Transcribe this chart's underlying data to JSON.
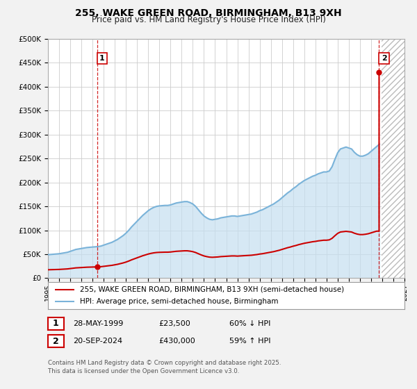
{
  "title": "255, WAKE GREEN ROAD, BIRMINGHAM, B13 9XH",
  "subtitle": "Price paid vs. HM Land Registry's House Price Index (HPI)",
  "background_color": "#f2f2f2",
  "plot_bg_color": "#ffffff",
  "grid_color": "#cccccc",
  "hpi_color": "#7ab3d9",
  "hpi_fill_color": "#c5dff0",
  "sale_color": "#cc0000",
  "dashed_color": "#cc0000",
  "ylim": [
    0,
    500000
  ],
  "yticks": [
    0,
    50000,
    100000,
    150000,
    200000,
    250000,
    300000,
    350000,
    400000,
    450000,
    500000
  ],
  "ytick_labels": [
    "£0",
    "£50K",
    "£100K",
    "£150K",
    "£200K",
    "£250K",
    "£300K",
    "£350K",
    "£400K",
    "£450K",
    "£500K"
  ],
  "xlim_start": 1995.0,
  "xlim_end": 2027.0,
  "xticks": [
    1995,
    1996,
    1997,
    1998,
    1999,
    2000,
    2001,
    2002,
    2003,
    2004,
    2005,
    2006,
    2007,
    2008,
    2009,
    2010,
    2011,
    2012,
    2013,
    2014,
    2015,
    2016,
    2017,
    2018,
    2019,
    2020,
    2021,
    2022,
    2023,
    2024,
    2025,
    2026,
    2027
  ],
  "sale1_date": 1999.41,
  "sale1_price": 23500,
  "sale2_date": 2024.72,
  "sale2_price": 430000,
  "legend_label_sale": "255, WAKE GREEN ROAD, BIRMINGHAM, B13 9XH (semi-detached house)",
  "legend_label_hpi": "HPI: Average price, semi-detached house, Birmingham",
  "table_row1": [
    "1",
    "28-MAY-1999",
    "£23,500",
    "60% ↓ HPI"
  ],
  "table_row2": [
    "2",
    "20-SEP-2024",
    "£430,000",
    "59% ↑ HPI"
  ],
  "footnote": "Contains HM Land Registry data © Crown copyright and database right 2025.\nThis data is licensed under the Open Government Licence v3.0.",
  "hpi_years": [
    1995.0,
    1995.25,
    1995.5,
    1995.75,
    1996.0,
    1996.25,
    1996.5,
    1996.75,
    1997.0,
    1997.25,
    1997.5,
    1997.75,
    1998.0,
    1998.25,
    1998.5,
    1998.75,
    1999.0,
    1999.25,
    1999.5,
    1999.75,
    2000.0,
    2000.25,
    2000.5,
    2000.75,
    2001.0,
    2001.25,
    2001.5,
    2001.75,
    2002.0,
    2002.25,
    2002.5,
    2002.75,
    2003.0,
    2003.25,
    2003.5,
    2003.75,
    2004.0,
    2004.25,
    2004.5,
    2004.75,
    2005.0,
    2005.25,
    2005.5,
    2005.75,
    2006.0,
    2006.25,
    2006.5,
    2006.75,
    2007.0,
    2007.25,
    2007.5,
    2007.75,
    2008.0,
    2008.25,
    2008.5,
    2008.75,
    2009.0,
    2009.25,
    2009.5,
    2009.75,
    2010.0,
    2010.25,
    2010.5,
    2010.75,
    2011.0,
    2011.25,
    2011.5,
    2011.75,
    2012.0,
    2012.25,
    2012.5,
    2012.75,
    2013.0,
    2013.25,
    2013.5,
    2013.75,
    2014.0,
    2014.25,
    2014.5,
    2014.75,
    2015.0,
    2015.25,
    2015.5,
    2015.75,
    2016.0,
    2016.25,
    2016.5,
    2016.75,
    2017.0,
    2017.25,
    2017.5,
    2017.75,
    2018.0,
    2018.25,
    2018.5,
    2018.75,
    2019.0,
    2019.25,
    2019.5,
    2019.75,
    2020.0,
    2020.25,
    2020.5,
    2020.75,
    2021.0,
    2021.25,
    2021.5,
    2021.75,
    2022.0,
    2022.25,
    2022.5,
    2022.75,
    2023.0,
    2023.25,
    2023.5,
    2023.75,
    2024.0,
    2024.25,
    2024.5,
    2024.75
  ],
  "hpi_values": [
    49000,
    49500,
    50000,
    50500,
    51000,
    52000,
    53000,
    54000,
    56000,
    58000,
    60000,
    61000,
    62000,
    63000,
    64000,
    64500,
    65000,
    65500,
    66000,
    67000,
    69000,
    71000,
    73000,
    75000,
    78000,
    81000,
    85000,
    89000,
    94000,
    100000,
    107000,
    113000,
    119000,
    125000,
    131000,
    136000,
    141000,
    145000,
    148000,
    150000,
    151000,
    151500,
    152000,
    152000,
    153000,
    155000,
    157000,
    158000,
    159000,
    160000,
    160000,
    158000,
    155000,
    150000,
    143000,
    136000,
    130000,
    126000,
    123000,
    122000,
    123000,
    124000,
    126000,
    127000,
    128000,
    129000,
    130000,
    130000,
    129000,
    130000,
    131000,
    132000,
    133000,
    134000,
    136000,
    138000,
    141000,
    143000,
    146000,
    149000,
    152000,
    155000,
    159000,
    163000,
    168000,
    173000,
    178000,
    182000,
    187000,
    191000,
    196000,
    200000,
    204000,
    207000,
    210000,
    213000,
    215000,
    218000,
    220000,
    222000,
    222000,
    224000,
    233000,
    248000,
    262000,
    270000,
    272000,
    274000,
    272000,
    270000,
    263000,
    258000,
    255000,
    255000,
    257000,
    260000,
    265000,
    270000,
    275000,
    280000
  ]
}
